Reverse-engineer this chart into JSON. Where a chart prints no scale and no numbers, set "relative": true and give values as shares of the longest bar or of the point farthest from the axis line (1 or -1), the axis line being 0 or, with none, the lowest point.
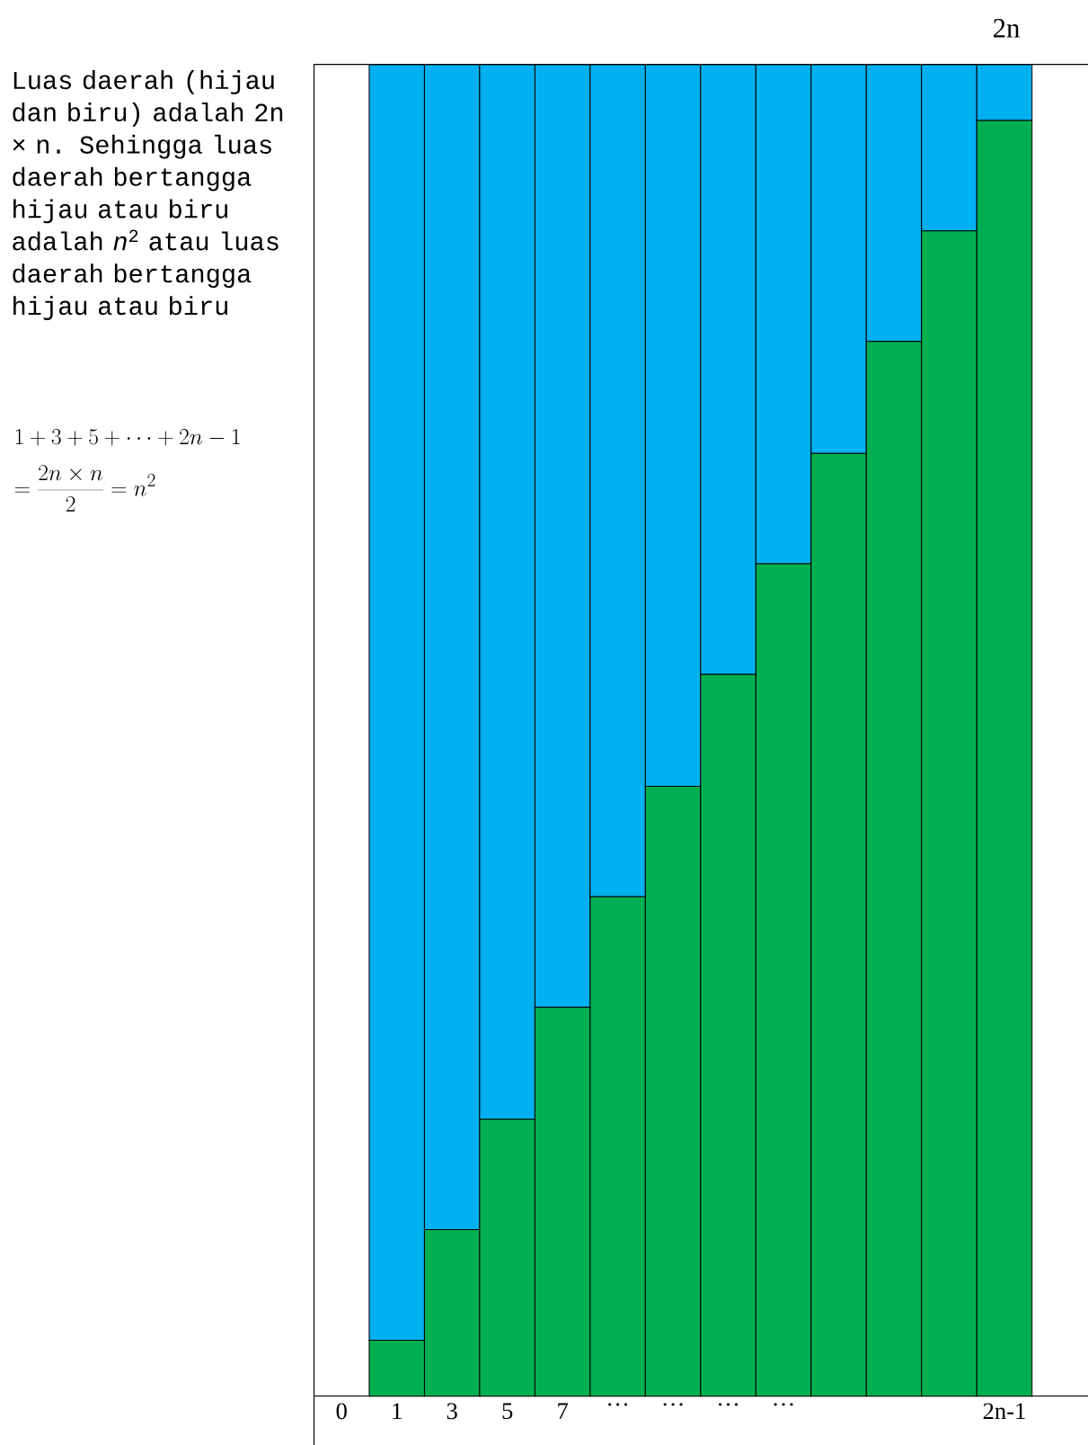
{
  "chart_data": {
    "type": "bar",
    "title": "2n",
    "stacked": true,
    "relative": true,
    "categories": [
      "0",
      "1",
      "3",
      "5",
      "7",
      "…",
      "…",
      "…",
      "…",
      null,
      null,
      null,
      "2n-1"
    ],
    "series": [
      {
        "color": "#00b050",
        "values": [
          null,
          0.042,
          0.125,
          0.208,
          0.292,
          0.375,
          0.458,
          0.542,
          0.625,
          0.708,
          0.792,
          0.875,
          0.958
        ]
      },
      {
        "color": "#00b0f0",
        "values": [
          null,
          0.958,
          0.875,
          0.792,
          0.708,
          0.625,
          0.542,
          0.458,
          0.375,
          0.292,
          0.208,
          0.125,
          0.042
        ]
      }
    ],
    "annotations": [
      "Luas daerah (hijau dan biru) adalah 2n × n. Sehingga luas daerah bertangga hijau atau biru adalah *n*$^{2}$ atau luas daerah bertangga hijau atau biru",
      "1+3+5+\\cdots+2n-1",
      "=\\frac{2n\\times n}{2}=n^{2}"
    ]
  }
}
